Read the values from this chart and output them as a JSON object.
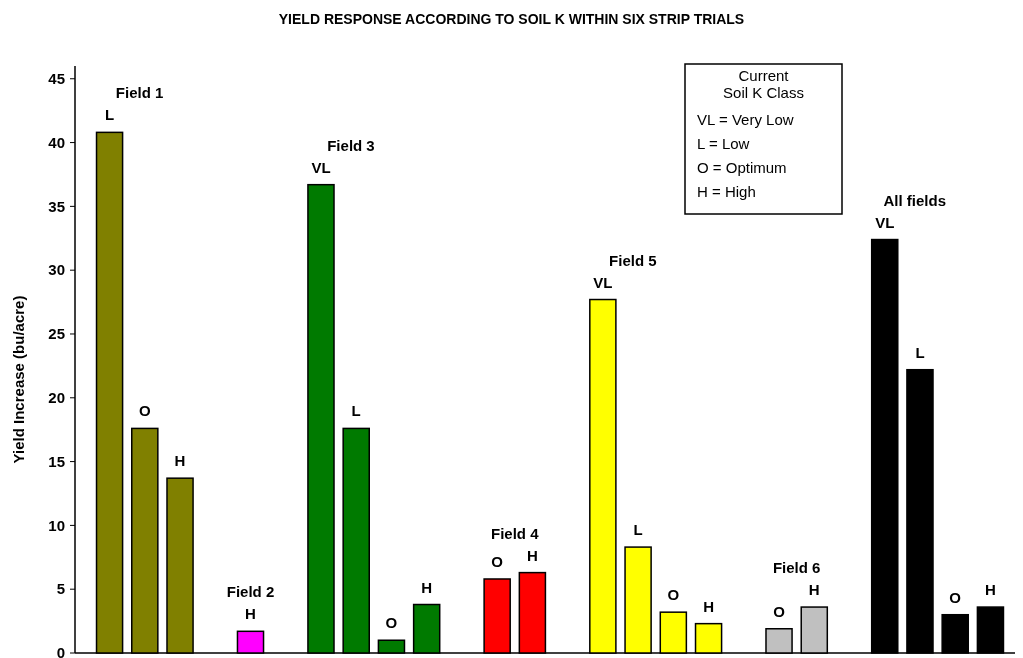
{
  "chart_data": {
    "type": "bar",
    "title": "YIELD RESPONSE ACCORDING TO SOIL K WITHIN SIX STRIP TRIALS",
    "ylabel": "Yield Increase (bu/acre)",
    "categories": [
      "L",
      "O",
      "H",
      null,
      "H",
      null,
      "VL",
      "L",
      "O",
      "H",
      null,
      "O",
      "H",
      null,
      "VL",
      "L",
      "O",
      "H",
      null,
      "O",
      "H",
      null,
      "VL",
      "L",
      "O",
      "H"
    ],
    "series": [
      {
        "name": "Field 1",
        "color": "#808000",
        "values": [
          40.8,
          17.6,
          13.7,
          null,
          null,
          null,
          null,
          null,
          null,
          null,
          null,
          null,
          null,
          null,
          null,
          null,
          null,
          null,
          null,
          null,
          null,
          null,
          null,
          null,
          null,
          null
        ]
      },
      {
        "name": "Field 2",
        "color": "#ff00ff",
        "values": [
          null,
          null,
          null,
          null,
          1.7,
          null,
          null,
          null,
          null,
          null,
          null,
          null,
          null,
          null,
          null,
          null,
          null,
          null,
          null,
          null,
          null,
          null,
          null,
          null,
          null,
          null
        ]
      },
      {
        "name": "Field 3",
        "color": "#007a00",
        "values": [
          null,
          null,
          null,
          null,
          null,
          null,
          36.7,
          17.6,
          1.0,
          3.8,
          null,
          null,
          null,
          null,
          null,
          null,
          null,
          null,
          null,
          null,
          null,
          null,
          null,
          null,
          null,
          null
        ]
      },
      {
        "name": "Field 4",
        "color": "#ff0000",
        "values": [
          null,
          null,
          null,
          null,
          null,
          null,
          null,
          null,
          null,
          null,
          null,
          5.8,
          6.3,
          null,
          null,
          null,
          null,
          null,
          null,
          null,
          null,
          null,
          null,
          null,
          null,
          null
        ]
      },
      {
        "name": "Field 5",
        "color": "#ffff00",
        "values": [
          null,
          null,
          null,
          null,
          null,
          null,
          null,
          null,
          null,
          null,
          null,
          null,
          null,
          null,
          27.7,
          8.3,
          3.2,
          2.3,
          null,
          null,
          null,
          null,
          null,
          null,
          null,
          null
        ]
      },
      {
        "name": "Field 6",
        "color": "#c0c0c0",
        "values": [
          null,
          null,
          null,
          null,
          null,
          null,
          null,
          null,
          null,
          null,
          null,
          null,
          null,
          null,
          null,
          null,
          null,
          null,
          null,
          1.9,
          3.6,
          null,
          null,
          null,
          null,
          null
        ]
      },
      {
        "name": "All fields",
        "color": "#000000",
        "values": [
          null,
          null,
          null,
          null,
          null,
          null,
          null,
          null,
          null,
          null,
          null,
          null,
          null,
          null,
          null,
          null,
          null,
          null,
          null,
          null,
          null,
          null,
          32.4,
          22.2,
          3.0,
          3.6
        ]
      }
    ],
    "ylim": [
      0,
      46
    ],
    "yticks": [
      0,
      5,
      10,
      15,
      20,
      25,
      30,
      35,
      40,
      45
    ],
    "grid": false,
    "annotations": [
      "Current",
      "Soil K Class",
      "VL = Very Low",
      "L = Low",
      "O = Optimum",
      "H = High"
    ]
  }
}
